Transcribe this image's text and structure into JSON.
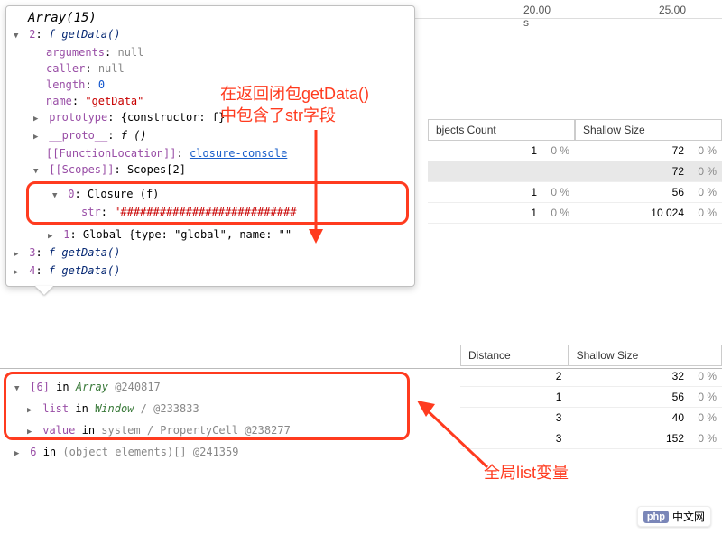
{
  "timeline": {
    "t1": "20.00 s",
    "t2": "25.00"
  },
  "tooltip": {
    "header": "Array(15)",
    "entry2": {
      "idx": "2",
      "fn": "f",
      "name": "getData()"
    },
    "props": {
      "arguments_k": "arguments",
      "arguments_v": "null",
      "caller_k": "caller",
      "caller_v": "null",
      "length_k": "length",
      "length_v": "0",
      "name_k": "name",
      "name_v": "\"getData\"",
      "prototype_k": "prototype",
      "prototype_v": "{constructor: f}",
      "proto_k": "__proto__",
      "proto_v": "f ()",
      "funcloc_k": "[[FunctionLocation]]",
      "funcloc_v": "closure-console",
      "scopes_k": "[[Scopes]]",
      "scopes_v": "Scopes[2]",
      "scope0": "0",
      "scope0_label": "Closure (f)",
      "str_k": "str",
      "str_v": "\"###########################",
      "scope1": "1",
      "scope1_label": "Global {type: \"global\", name: \"\"",
      "entry3": {
        "idx": "3",
        "label": "f getData()"
      },
      "entry4": {
        "idx": "4",
        "label": "f getData()"
      }
    }
  },
  "annot1_line1": "在返回闭包getData()",
  "annot1_line2": "中包含了str字段",
  "annot2": "全局list变量",
  "table1": {
    "h1": "bjects Count",
    "h2": "Shallow Size",
    "rows": [
      {
        "n1": "1",
        "p1": "0 %",
        "n2": "72",
        "p2": "0 %"
      },
      {
        "n1": "",
        "p1": "",
        "n2": "72",
        "p2": "0 %",
        "hl": true
      },
      {
        "n1": "1",
        "p1": "0 %",
        "n2": "56",
        "p2": "0 %"
      },
      {
        "n1": "1",
        "p1": "0 %",
        "n2": "10 024",
        "p2": "0 %"
      }
    ]
  },
  "table2": {
    "h1": "Distance",
    "h2": "Shallow Size",
    "rows": [
      {
        "n1": "2",
        "n2": "32",
        "p2": "0 %"
      },
      {
        "n1": "1",
        "n2": "56",
        "p2": "0 %"
      },
      {
        "n1": "3",
        "n2": "40",
        "p2": "0 %"
      },
      {
        "n1": "3",
        "n2": "152",
        "p2": "0 %"
      }
    ]
  },
  "retainers": {
    "r1_idx": "[6]",
    "r1_in": "in",
    "r1_obj": "Array",
    "r1_id": "@240817",
    "r2_prop": "list",
    "r2_in": "in",
    "r2_obj": "Window",
    "r2_sep": "/",
    "r2_id": "@233833",
    "r3_prop": "value",
    "r3_in": "in",
    "r3_obj": "system / PropertyCell",
    "r3_id": "@238277",
    "r4_prop": "6",
    "r4_in": "in",
    "r4_obj": "(object elements)[]",
    "r4_id": "@241359"
  },
  "watermark": "中文网",
  "colors": {
    "annotation": "#ff3b1f",
    "purple": "#994ea6",
    "red": "#c80000",
    "blue": "#1155cc"
  }
}
